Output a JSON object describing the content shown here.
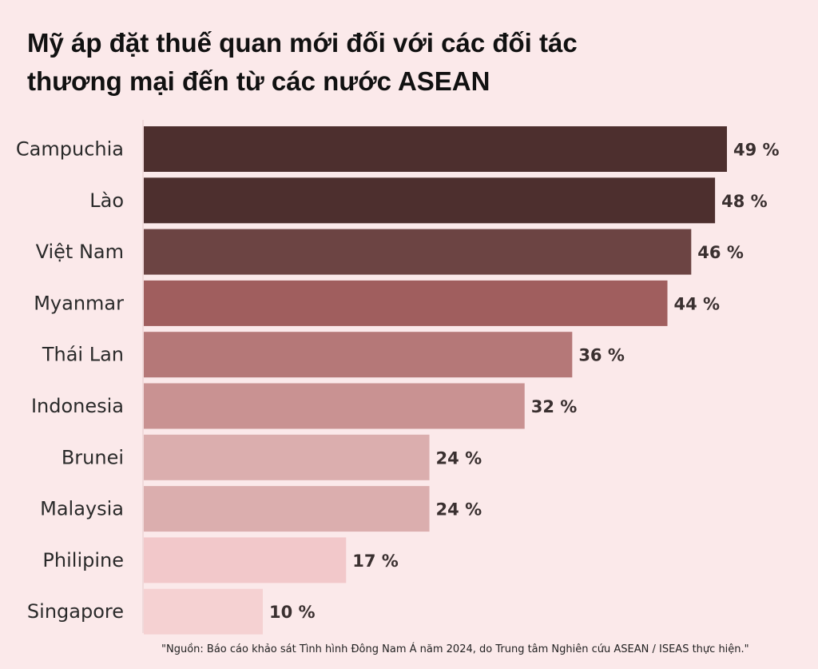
{
  "chart_data": {
    "type": "bar",
    "orientation": "horizontal",
    "title": "Mỹ áp đặt thuế quan mới đối với các đối tác thương mại đến từ các nước ASEAN",
    "title_lines": [
      "Mỹ áp đặt thuế quan mới đối với các đối tác",
      "thương mại đến từ các nước ASEAN"
    ],
    "categories": [
      "Campuchia",
      "Lào",
      "Việt Nam",
      "Myanmar",
      "Thái Lan",
      "Indonesia",
      "Brunei",
      "Malaysia",
      "Philipine",
      "Singapore"
    ],
    "values": [
      49,
      48,
      46,
      44,
      36,
      32,
      24,
      24,
      17,
      10
    ],
    "value_labels": [
      "49 %",
      "48 %",
      "46 %",
      "44 %",
      "36 %",
      "32 %",
      "24 %",
      "24 %",
      "17 %",
      "10 %"
    ],
    "colors": [
      "#4d2f2e",
      "#4d2f2e",
      "#6c4443",
      "#a05e5e",
      "#b57878",
      "#c99292",
      "#dbaeae",
      "#dbaeae",
      "#f2c8ca",
      "#f5d1d2"
    ],
    "xlim": [
      0,
      49
    ],
    "grid": false,
    "legend": "none",
    "source": "\"Nguồn: Báo cáo khảo sát Tình hình Đông Nam Á năm 2024, do Trung tâm Nghiên cứu ASEAN / ISEAS thực hiện.\""
  }
}
